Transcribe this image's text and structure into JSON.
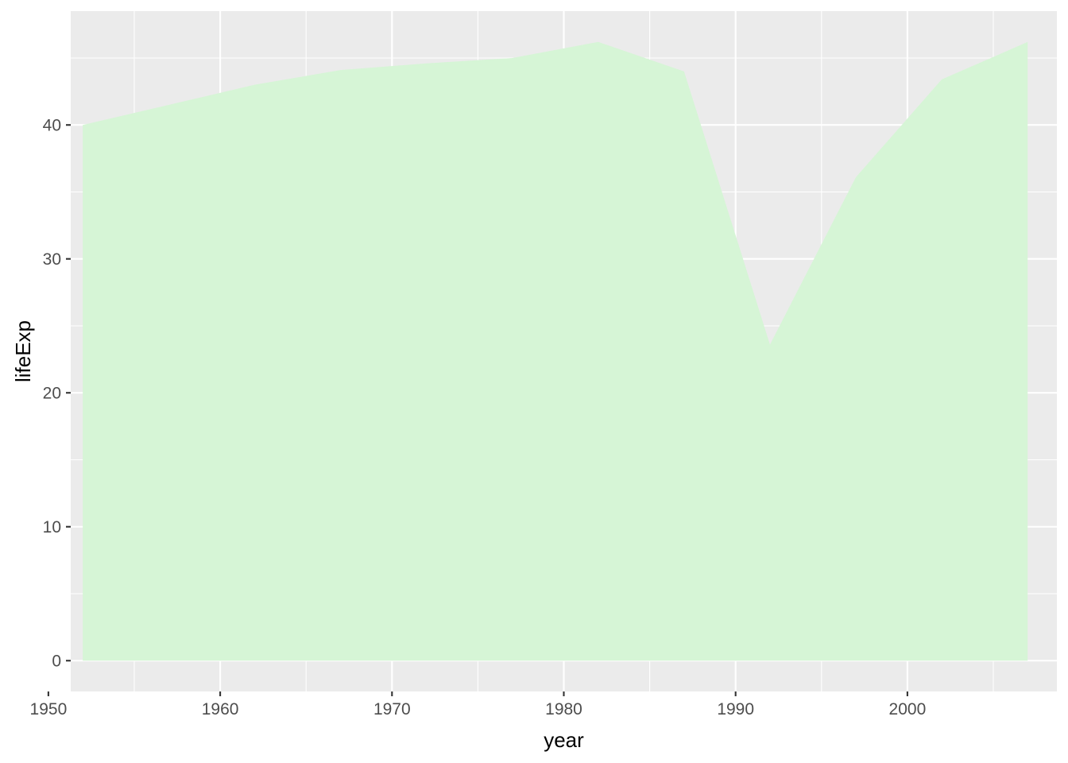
{
  "chart_data": {
    "type": "area",
    "xlabel": "year",
    "ylabel": "lifeExp",
    "x": [
      1952,
      1957,
      1962,
      1967,
      1972,
      1977,
      1982,
      1987,
      1992,
      1997,
      2002,
      2007
    ],
    "series": [
      {
        "values": [
          40.0,
          41.5,
          43.0,
          44.1,
          44.6,
          45.0,
          46.2,
          44.0,
          23.6,
          36.1,
          43.4,
          46.2
        ],
        "fill": "#D6F5D6"
      }
    ],
    "xlim": [
      1951.3,
      2008.7
    ],
    "ylim": [
      -2.3,
      48.5
    ],
    "x_major_ticks": [
      1950,
      1960,
      1970,
      1980,
      1990,
      2000
    ],
    "x_minor_ticks": [
      1955,
      1965,
      1975,
      1985,
      1995,
      2005
    ],
    "y_major_ticks": [
      0,
      10,
      20,
      30,
      40
    ],
    "y_minor_ticks": [
      5,
      15,
      25,
      35,
      45
    ],
    "x_tick_labels": [
      "1950",
      "1960",
      "1970",
      "1980",
      "1990",
      "2000"
    ],
    "y_tick_labels": [
      "0",
      "10",
      "20",
      "30",
      "40"
    ],
    "grid": true,
    "legend": "none",
    "panel_background": "#EBEBEB",
    "grid_color": "#FFFFFF"
  }
}
